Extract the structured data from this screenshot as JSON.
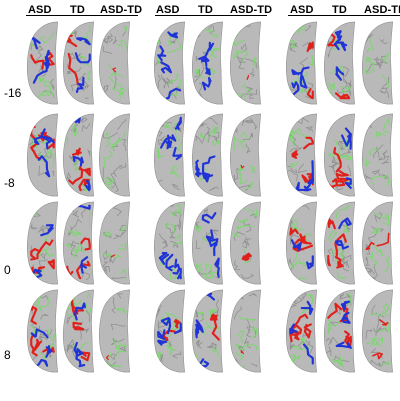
{
  "figure": {
    "column_groups": [
      {
        "labels": [
          "ASD",
          "TD",
          "ASD-TD"
        ]
      },
      {
        "labels": [
          "ASD",
          "TD",
          "ASD-TD"
        ]
      },
      {
        "labels": [
          "ASD",
          "TD",
          "ASD-TD"
        ]
      }
    ],
    "rows": [
      {
        "label": "-16"
      },
      {
        "label": "-8"
      },
      {
        "label": "0"
      },
      {
        "label": "8"
      }
    ],
    "colors": {
      "background": "#ffffff",
      "brain_fill": "#b9b9b9",
      "brain_dark": "#8f8f8f",
      "green_tract": "#79d86b",
      "red_tract": "#e0201a",
      "blue_tract": "#1f33d6"
    }
  }
}
